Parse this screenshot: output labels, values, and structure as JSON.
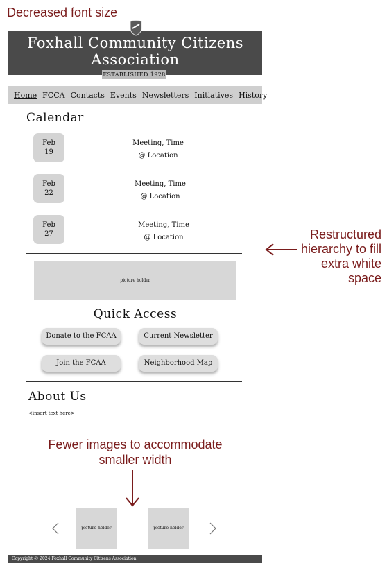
{
  "annotations": {
    "top": "Decreased font size",
    "right": "Restructured hierarchy to fill extra white space",
    "bottom": "Fewer images to accommodate smaller width"
  },
  "header": {
    "title": "Foxhall Community Citizens Association",
    "established": "ESTABLISHED 1928",
    "logo_icon": "shield-icon",
    "bg_color": "#4a4a4a"
  },
  "nav": {
    "items": [
      "Home",
      "FCCA",
      "Contacts",
      "Events",
      "Newsletters",
      "Initiatives",
      "History"
    ]
  },
  "calendar": {
    "heading": "Calendar",
    "events": [
      {
        "month": "Feb",
        "day": "19",
        "line1": "Meeting, Time",
        "line2": "@ Location"
      },
      {
        "month": "Feb",
        "day": "22",
        "line1": "Meeting, Time",
        "line2": "@ Location"
      },
      {
        "month": "Feb",
        "day": "27",
        "line1": "Meeting, Time",
        "line2": "@ Location"
      }
    ]
  },
  "feature_picture": "picture holder",
  "quick_access": {
    "heading": "Quick Access",
    "buttons": [
      "Donate to the FCAA",
      "Current Newsletter",
      "Join the FCAA",
      "Neighborhood Map"
    ]
  },
  "about": {
    "heading": "About Us",
    "text": "<insert text here>"
  },
  "carousel": {
    "items": [
      "picture holder",
      "picture holder"
    ],
    "prev_icon": "chevron-left-icon",
    "next_icon": "chevron-right-icon"
  },
  "footer": {
    "text": "Copyright @ 2024 Foxhall Community Citizens Association"
  },
  "accent_color": "#7a1c1c"
}
